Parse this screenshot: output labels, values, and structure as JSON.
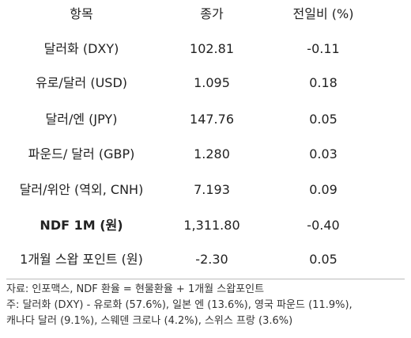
{
  "table": {
    "headers": [
      "항목",
      "종가",
      "전일비 (%)"
    ],
    "rows": [
      {
        "item": "달러화 (DXY)",
        "close": "102.81",
        "change": "-0.11",
        "bold": false
      },
      {
        "item": "유로/달러 (USD)",
        "close": "1.095",
        "change": "0.18",
        "bold": false
      },
      {
        "item": "달러/엔 (JPY)",
        "close": "147.76",
        "change": "0.05",
        "bold": false
      },
      {
        "item": "파운드/ 달러 (GBP)",
        "close": "1.280",
        "change": "0.03",
        "bold": false
      },
      {
        "item": "달러/위안 (역외, CNH)",
        "close": "7.193",
        "change": "0.09",
        "bold": false
      },
      {
        "item": "NDF 1M (원)",
        "close": "1,311.80",
        "change": "-0.40",
        "bold": true
      },
      {
        "item": "1개월 스왑 포인트 (원)",
        "close": "-2.30",
        "change": "0.05",
        "bold": false
      }
    ]
  },
  "notes": {
    "source": "자료: 인포맥스, NDF 환율 = 현물환율 + 1개월 스왑포인트",
    "note1": "주: 달러화 (DXY) - 유로화 (57.6%), 일본 엔 (13.6%), 영국 파운드 (11.9%),",
    "note2": "캐나다 달러 (9.1%), 스웨덴 크로나 (4.2%), 스위스 프랑 (3.6%)"
  }
}
